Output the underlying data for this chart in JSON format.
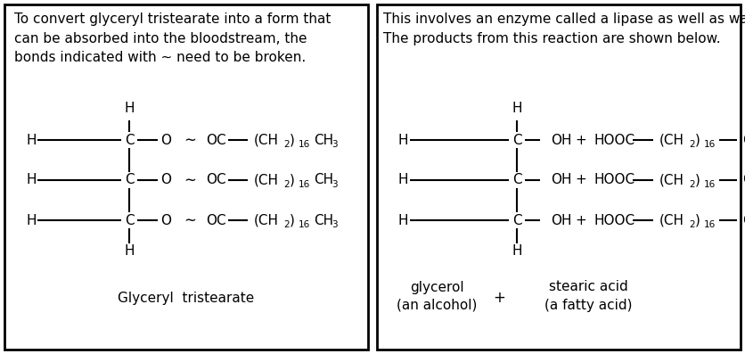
{
  "bg_color": "#ffffff",
  "border_color": "#000000",
  "text_color": "#000000",
  "fig_width": 8.36,
  "fig_height": 3.97,
  "dpi": 100,
  "font_size": 11,
  "font_size_sub": 7.5,
  "left_panel": {
    "title": "To convert glyceryl tristearate into a form that\ncan be absorbed into the bloodstream, the\nbonds indicated with ∼ need to be broken.",
    "label": "Glyceryl  tristearate"
  },
  "right_panel": {
    "title": "This involves an enzyme called a lipase as well as water molecules.\nThe products from this reaction are shown below.",
    "glycerol": "glycerol",
    "glycerol_sub": "(an alcohol)",
    "stearic": "stearic acid",
    "stearic_sub": "(a fatty acid)",
    "plus": "+"
  }
}
